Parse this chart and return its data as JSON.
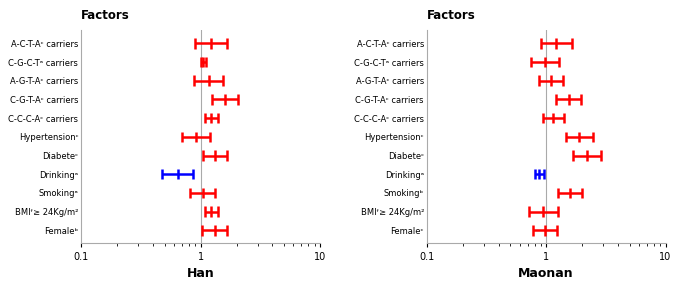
{
  "han_labels": [
    "A-C-T-Aᶜ carriers",
    "C-G-C-Tᵃ carriers",
    "A-G-T-Aᶜ carriers",
    "C-G-T-Aᶜ carriers",
    "C-C-C-Aᶜ carriers",
    "Hypertensionᶜ",
    "Diabeteᶜ",
    "Drinkingᵃ",
    "Smokingᵃ",
    "BMIᶠ≥ 24Kg/m²",
    "Femaleᵇ"
  ],
  "han_centers": [
    1.22,
    1.05,
    1.18,
    1.6,
    1.22,
    0.92,
    1.32,
    0.65,
    1.05,
    1.22,
    1.32
  ],
  "han_lo": [
    0.9,
    1.0,
    0.88,
    1.25,
    1.08,
    0.7,
    1.05,
    0.48,
    0.82,
    1.08,
    1.02
  ],
  "han_hi": [
    1.65,
    1.12,
    1.55,
    2.05,
    1.4,
    1.2,
    1.65,
    0.87,
    1.32,
    1.4,
    1.68
  ],
  "han_colors": [
    "red",
    "red",
    "red",
    "red",
    "red",
    "red",
    "red",
    "blue",
    "red",
    "red",
    "red"
  ],
  "maonan_labels": [
    "A-C-T-Aᶜ carriers",
    "C-G-C-Tᵃ carriers",
    "A-G-T-Aᶜ carriers",
    "C-G-T-Aᶜ carriers",
    "C-C-C-Aᶜ carriers",
    "Hypertensionᶜ",
    "Diabeteᶜ",
    "Drinkingᵃ",
    "Smokingᵇ",
    "BMIᶠ≥ 24Kg/m²",
    "Femaleᶜ"
  ],
  "maonan_centers": [
    1.22,
    0.98,
    1.1,
    1.55,
    1.15,
    1.9,
    2.2,
    0.88,
    1.58,
    0.95,
    0.98
  ],
  "maonan_lo": [
    0.9,
    0.75,
    0.88,
    1.22,
    0.95,
    1.48,
    1.68,
    0.8,
    1.25,
    0.72,
    0.78
  ],
  "maonan_hi": [
    1.65,
    1.28,
    1.38,
    1.95,
    1.4,
    2.45,
    2.9,
    0.96,
    2.0,
    1.25,
    1.24
  ],
  "maonan_colors": [
    "red",
    "red",
    "red",
    "red",
    "red",
    "red",
    "red",
    "blue",
    "red",
    "red",
    "red"
  ],
  "han_title": "Han",
  "maonan_title": "Maonan",
  "factors_title": "Factors",
  "xlim": [
    0.1,
    10
  ],
  "ref_line": 1.0,
  "background_color": "#ffffff",
  "label_fontsize": 6.0,
  "title_fontsize": 8.5,
  "xlabel_fontsize": 9.0
}
